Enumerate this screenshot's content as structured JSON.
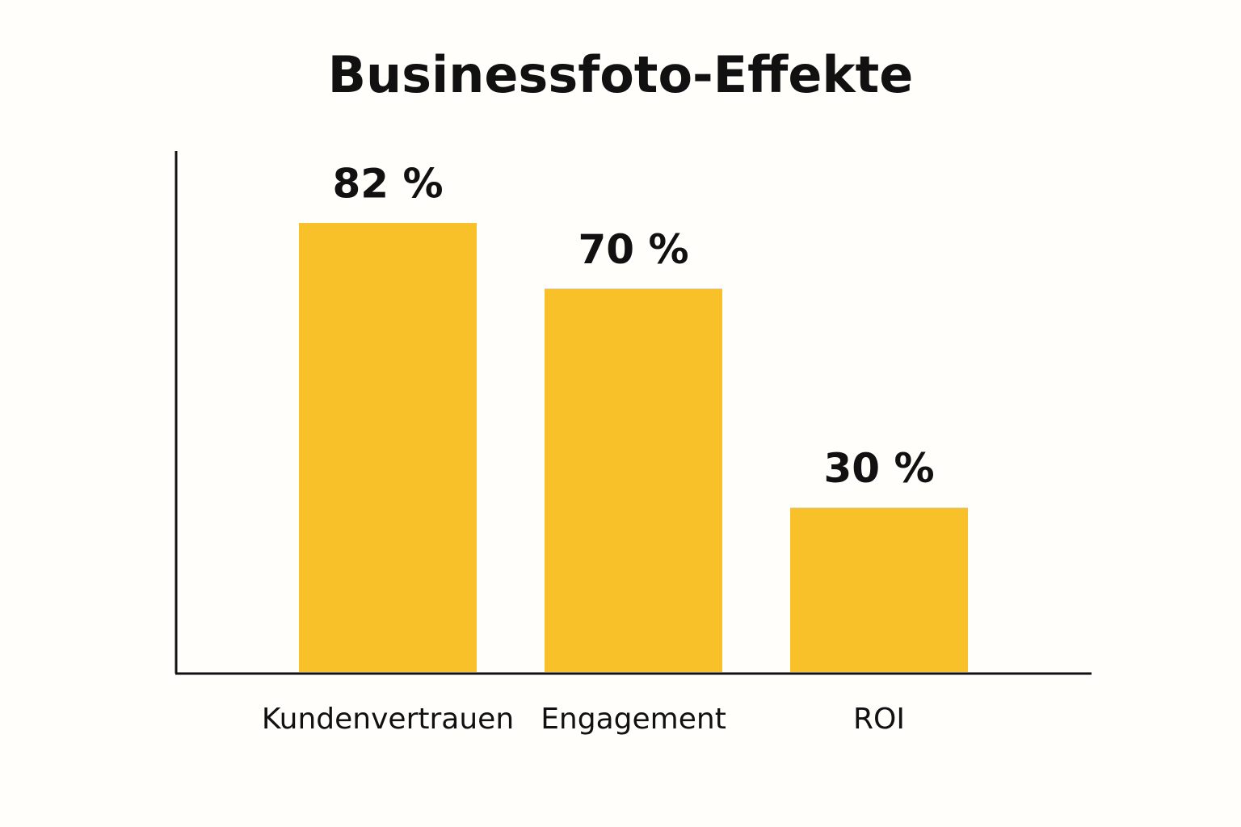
{
  "chart_data": {
    "type": "bar",
    "title": "Businessfoto-Effekte",
    "categories": [
      "Kundenvertrauen",
      "Engagement",
      "ROI"
    ],
    "values": [
      82,
      70,
      30
    ],
    "value_labels": [
      "82 %",
      "70 %",
      "30 %"
    ],
    "color": "#f8c12a",
    "ylim": [
      0,
      100
    ]
  }
}
